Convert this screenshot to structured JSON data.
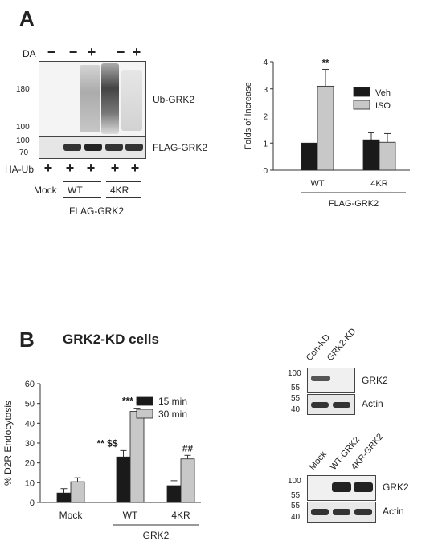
{
  "panelA": {
    "letter": "A",
    "western": {
      "da_label": "DA",
      "da_signs": [
        "−",
        "−",
        "+",
        "−",
        "+"
      ],
      "ha_label": "HA-Ub",
      "ha_signs": [
        "+",
        "+",
        "+",
        "+",
        "+"
      ],
      "mw_top": [
        "180",
        "100"
      ],
      "mw_bottom": [
        "100",
        "70"
      ],
      "blot1_label": "Ub-GRK2",
      "blot2_label": "FLAG-GRK2",
      "lane_labels": [
        "Mock",
        "WT",
        "4KR"
      ],
      "group_label": "FLAG-GRK2"
    }
  },
  "panelB": {
    "letter": "B",
    "title": "GRK2-KD cells",
    "blot1": {
      "lanes": [
        "Con-KD",
        "GRK2-KD"
      ],
      "mw_top": [
        "100",
        "55"
      ],
      "mw_bottom": [
        "55",
        "40"
      ],
      "label_top": "GRK2",
      "label_bottom": "Actin"
    },
    "blot2": {
      "lanes": [
        "Mock",
        "WT-GRK2",
        "4KR-GRK2"
      ],
      "mw_top": [
        "100",
        "55"
      ],
      "mw_bottom": [
        "55",
        "40"
      ],
      "label_top": "GRK2",
      "label_bottom": "Actin"
    }
  },
  "chart_data": [
    {
      "type": "bar",
      "categories": [
        "WT",
        "4KR"
      ],
      "group_label": "FLAG-GRK2",
      "ylabel": "Folds of Increase",
      "ylim": [
        0,
        4
      ],
      "yticks": [
        0,
        1,
        2,
        3,
        4
      ],
      "legend_position": "top-right",
      "series": [
        {
          "name": "Veh",
          "values": [
            1.0,
            1.12
          ],
          "errors": [
            0,
            0.26
          ],
          "color": "#1a1a1a"
        },
        {
          "name": "ISO",
          "values": [
            3.1,
            1.03
          ],
          "errors": [
            0.62,
            0.32
          ],
          "color": "#c8c8c8"
        }
      ],
      "annotations": [
        {
          "category": "WT",
          "series": "ISO",
          "text": "**"
        }
      ]
    },
    {
      "type": "bar",
      "categories": [
        "Mock",
        "WT",
        "4KR"
      ],
      "group_label": "GRK2",
      "group_categories": [
        "WT",
        "4KR"
      ],
      "ylabel": "% D2R Endocytosis",
      "ylim": [
        0,
        60
      ],
      "yticks": [
        0,
        10,
        20,
        30,
        40,
        50,
        60
      ],
      "legend_position": "top-right",
      "series": [
        {
          "name": "15 min",
          "values": [
            4.8,
            23,
            8.5
          ],
          "errors": [
            2.2,
            3.2,
            2.5
          ],
          "color": "#1a1a1a"
        },
        {
          "name": "30 min",
          "values": [
            10.5,
            46,
            22
          ],
          "errors": [
            2.0,
            1.6,
            1.8
          ],
          "color": "#c8c8c8"
        }
      ],
      "annotations": [
        {
          "category": "WT",
          "series": "15 min",
          "text": "** $$"
        },
        {
          "category": "WT",
          "series": "30 min",
          "text": "*** $$$"
        },
        {
          "category": "4KR",
          "series": "30 min",
          "text": "##"
        }
      ]
    }
  ]
}
